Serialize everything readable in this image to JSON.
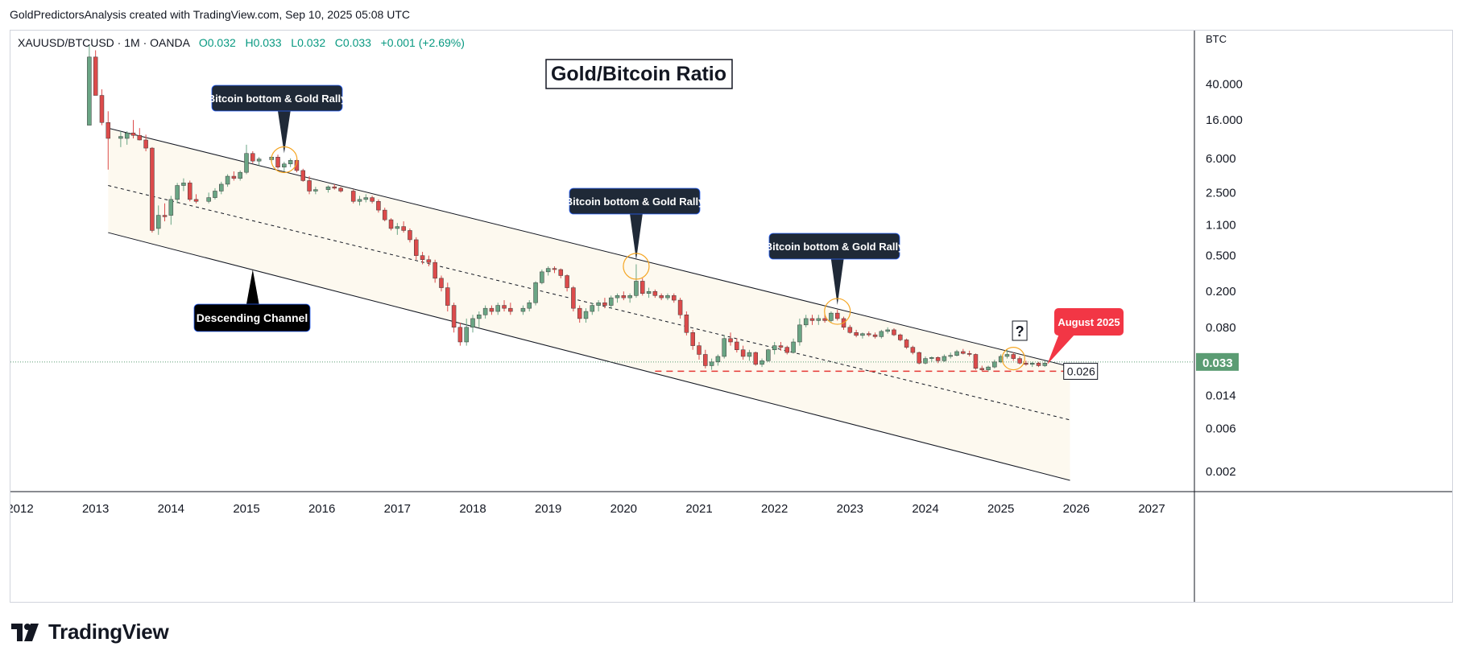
{
  "header": {
    "credit": "GoldPredictorsAnalysis created with TradingView.com, Sep 10, 2025 05:08 UTC"
  },
  "symbol_info": {
    "symbol": "XAUUSD/BTCUSD",
    "interval": "1M",
    "source": "OANDA",
    "open": "O0.032",
    "high": "H0.033",
    "low": "L0.032",
    "close": "C0.033",
    "change": "+0.001 (+2.69%)"
  },
  "footer": {
    "brand": "TradingView"
  },
  "colors": {
    "up": "#6aa584",
    "down": "#dc4b4b",
    "channel_fill": "#fdf9ef",
    "callout_bg": "#1f2937",
    "august_bg": "#f23645",
    "last_price_bg": "#5b9c73",
    "support_line": "#e53935",
    "circle": "#f5a623"
  },
  "chart_data": {
    "type": "candlestick",
    "title": "Gold/Bitcoin Ratio",
    "y_unit": "BTC",
    "y_scale": "log",
    "ylim": [
      0.0012,
      75
    ],
    "x_ticks": [
      "2012",
      "2013",
      "2014",
      "2015",
      "2016",
      "2017",
      "2018",
      "2019",
      "2020",
      "2021",
      "2022",
      "2023",
      "2024",
      "2025",
      "2026",
      "2027"
    ],
    "y_ticks": [
      "40.000",
      "16.000",
      "6.000",
      "2.500",
      "1.100",
      "0.500",
      "0.200",
      "0.080",
      "0.014",
      "0.006",
      "0.002"
    ],
    "last_price": "0.033",
    "support_level": "0.026",
    "channel": {
      "upper_start": [
        "2013-03",
        13.0
      ],
      "upper_end": [
        "2025-09",
        0.033
      ],
      "mid_start": [
        "2013-03",
        3.0
      ],
      "mid_end": [
        "2025-12",
        0.0075
      ],
      "lower_start": [
        "2013-03",
        0.9
      ],
      "lower_end": [
        "2025-12",
        0.0016
      ]
    },
    "candles_approx": [
      [
        "2012-12",
        14.0,
        110.0,
        14.0,
        80.0
      ],
      [
        "2013-01",
        80.0,
        95.0,
        30.0,
        30.0
      ],
      [
        "2013-02",
        30.0,
        35.0,
        14.0,
        15.0
      ],
      [
        "2013-03",
        15.0,
        20.0,
        4.5,
        10.0
      ],
      [
        "2013-05",
        10.0,
        12.0,
        8.0,
        10.5
      ],
      [
        "2013-06",
        10.0,
        12.0,
        8.5,
        11.5
      ],
      [
        "2013-07",
        11.5,
        16.0,
        10.0,
        10.8
      ],
      [
        "2013-08",
        10.8,
        13.0,
        9.5,
        9.6
      ],
      [
        "2013-09",
        9.6,
        11.0,
        7.2,
        7.8
      ],
      [
        "2013-10",
        7.8,
        8.0,
        0.9,
        0.95
      ],
      [
        "2013-11",
        1.0,
        1.8,
        0.85,
        1.4
      ],
      [
        "2013-12",
        1.4,
        1.9,
        1.2,
        1.35
      ],
      [
        "2014-01",
        1.4,
        2.3,
        1.1,
        2.1
      ],
      [
        "2014-02",
        2.1,
        3.2,
        1.9,
        3.0
      ],
      [
        "2014-03",
        3.0,
        3.6,
        2.6,
        3.2
      ],
      [
        "2014-04",
        3.2,
        3.4,
        2.0,
        2.1
      ],
      [
        "2014-05",
        2.1,
        2.4,
        1.9,
        2.0
      ],
      [
        "2014-07",
        2.0,
        2.5,
        1.9,
        2.2
      ],
      [
        "2014-08",
        2.2,
        2.8,
        2.1,
        2.6
      ],
      [
        "2014-09",
        2.6,
        3.3,
        2.4,
        3.1
      ],
      [
        "2014-10",
        3.1,
        4.0,
        2.9,
        3.8
      ],
      [
        "2014-11",
        3.8,
        4.3,
        3.4,
        3.6
      ],
      [
        "2014-12",
        3.6,
        4.4,
        3.4,
        4.2
      ],
      [
        "2015-01",
        4.2,
        8.5,
        4.0,
        6.8
      ],
      [
        "2015-02",
        6.8,
        7.2,
        5.3,
        5.6
      ],
      [
        "2015-03",
        5.6,
        6.2,
        5.0,
        5.9
      ],
      [
        "2015-05",
        5.8,
        6.4,
        5.5,
        6.2
      ],
      [
        "2015-06",
        6.2,
        6.6,
        4.6,
        4.8
      ],
      [
        "2015-07",
        4.8,
        5.5,
        4.3,
        5.2
      ],
      [
        "2015-08",
        5.2,
        6.0,
        4.8,
        5.7
      ],
      [
        "2015-09",
        5.7,
        5.9,
        4.2,
        4.4
      ],
      [
        "2015-10",
        4.4,
        4.6,
        3.3,
        3.4
      ],
      [
        "2015-11",
        3.4,
        3.8,
        2.4,
        2.6
      ],
      [
        "2015-12",
        2.6,
        2.9,
        2.4,
        2.7
      ],
      [
        "2016-02",
        2.7,
        3.0,
        2.5,
        2.9
      ],
      [
        "2016-03",
        2.9,
        3.1,
        2.7,
        2.8
      ],
      [
        "2016-04",
        2.8,
        2.9,
        2.5,
        2.6
      ],
      [
        "2016-06",
        2.6,
        2.7,
        1.9,
        2.0
      ],
      [
        "2016-07",
        2.0,
        2.3,
        1.8,
        2.1
      ],
      [
        "2016-08",
        2.1,
        2.4,
        1.95,
        2.2
      ],
      [
        "2016-09",
        2.2,
        2.3,
        1.9,
        2.0
      ],
      [
        "2016-10",
        2.0,
        2.1,
        1.5,
        1.6
      ],
      [
        "2016-11",
        1.6,
        1.7,
        1.2,
        1.25
      ],
      [
        "2016-12",
        1.25,
        1.3,
        0.95,
        1.0
      ],
      [
        "2017-01",
        1.0,
        1.15,
        0.85,
        1.05
      ],
      [
        "2017-02",
        1.05,
        1.2,
        0.9,
        0.95
      ],
      [
        "2017-03",
        0.95,
        1.0,
        0.7,
        0.75
      ],
      [
        "2017-04",
        0.75,
        0.8,
        0.45,
        0.5
      ],
      [
        "2017-05",
        0.5,
        0.55,
        0.4,
        0.45
      ],
      [
        "2017-06",
        0.45,
        0.5,
        0.38,
        0.42
      ],
      [
        "2017-07",
        0.42,
        0.45,
        0.25,
        0.28
      ],
      [
        "2017-08",
        0.28,
        0.3,
        0.2,
        0.22
      ],
      [
        "2017-09",
        0.22,
        0.25,
        0.12,
        0.14
      ],
      [
        "2017-10",
        0.14,
        0.15,
        0.07,
        0.08
      ],
      [
        "2017-11",
        0.08,
        0.09,
        0.05,
        0.055
      ],
      [
        "2017-12",
        0.055,
        0.1,
        0.05,
        0.08
      ],
      [
        "2018-01",
        0.08,
        0.11,
        0.07,
        0.1
      ],
      [
        "2018-02",
        0.1,
        0.12,
        0.08,
        0.11
      ],
      [
        "2018-03",
        0.11,
        0.14,
        0.1,
        0.13
      ],
      [
        "2018-04",
        0.13,
        0.14,
        0.11,
        0.12
      ],
      [
        "2018-05",
        0.12,
        0.15,
        0.11,
        0.14
      ],
      [
        "2018-06",
        0.14,
        0.16,
        0.12,
        0.13
      ],
      [
        "2018-07",
        0.13,
        0.15,
        0.11,
        0.12
      ],
      [
        "2018-09",
        0.12,
        0.14,
        0.11,
        0.13
      ],
      [
        "2018-10",
        0.13,
        0.16,
        0.12,
        0.15
      ],
      [
        "2018-11",
        0.15,
        0.26,
        0.14,
        0.25
      ],
      [
        "2018-12",
        0.25,
        0.35,
        0.24,
        0.33
      ],
      [
        "2019-01",
        0.33,
        0.38,
        0.3,
        0.36
      ],
      [
        "2019-02",
        0.36,
        0.38,
        0.32,
        0.35
      ],
      [
        "2019-03",
        0.35,
        0.36,
        0.28,
        0.3
      ],
      [
        "2019-04",
        0.3,
        0.31,
        0.2,
        0.22
      ],
      [
        "2019-05",
        0.22,
        0.23,
        0.12,
        0.13
      ],
      [
        "2019-06",
        0.13,
        0.14,
        0.09,
        0.1
      ],
      [
        "2019-07",
        0.1,
        0.13,
        0.09,
        0.12
      ],
      [
        "2019-08",
        0.12,
        0.15,
        0.11,
        0.14
      ],
      [
        "2019-09",
        0.14,
        0.16,
        0.12,
        0.15
      ],
      [
        "2019-10",
        0.15,
        0.17,
        0.13,
        0.14
      ],
      [
        "2019-11",
        0.14,
        0.18,
        0.13,
        0.17
      ],
      [
        "2019-12",
        0.17,
        0.19,
        0.15,
        0.18
      ],
      [
        "2020-01",
        0.18,
        0.2,
        0.16,
        0.17
      ],
      [
        "2020-02",
        0.17,
        0.19,
        0.15,
        0.18
      ],
      [
        "2020-03",
        0.18,
        0.4,
        0.17,
        0.26
      ],
      [
        "2020-04",
        0.26,
        0.28,
        0.18,
        0.19
      ],
      [
        "2020-05",
        0.19,
        0.22,
        0.17,
        0.2
      ],
      [
        "2020-06",
        0.2,
        0.21,
        0.17,
        0.18
      ],
      [
        "2020-07",
        0.18,
        0.19,
        0.16,
        0.17
      ],
      [
        "2020-08",
        0.17,
        0.19,
        0.16,
        0.18
      ],
      [
        "2020-09",
        0.18,
        0.19,
        0.15,
        0.16
      ],
      [
        "2020-10",
        0.16,
        0.17,
        0.1,
        0.11
      ],
      [
        "2020-11",
        0.11,
        0.12,
        0.065,
        0.07
      ],
      [
        "2020-12",
        0.07,
        0.075,
        0.045,
        0.05
      ],
      [
        "2021-01",
        0.05,
        0.055,
        0.035,
        0.04
      ],
      [
        "2021-02",
        0.04,
        0.045,
        0.028,
        0.03
      ],
      [
        "2021-03",
        0.03,
        0.036,
        0.027,
        0.033
      ],
      [
        "2021-04",
        0.033,
        0.04,
        0.03,
        0.038
      ],
      [
        "2021-05",
        0.038,
        0.065,
        0.036,
        0.06
      ],
      [
        "2021-06",
        0.06,
        0.07,
        0.05,
        0.055
      ],
      [
        "2021-07",
        0.055,
        0.06,
        0.042,
        0.045
      ],
      [
        "2021-08",
        0.045,
        0.05,
        0.035,
        0.038
      ],
      [
        "2021-09",
        0.038,
        0.045,
        0.034,
        0.042
      ],
      [
        "2021-10",
        0.042,
        0.043,
        0.03,
        0.031
      ],
      [
        "2021-11",
        0.031,
        0.036,
        0.029,
        0.034
      ],
      [
        "2021-12",
        0.034,
        0.046,
        0.033,
        0.045
      ],
      [
        "2022-01",
        0.045,
        0.055,
        0.04,
        0.05
      ],
      [
        "2022-02",
        0.05,
        0.055,
        0.044,
        0.048
      ],
      [
        "2022-03",
        0.048,
        0.05,
        0.04,
        0.042
      ],
      [
        "2022-04",
        0.042,
        0.06,
        0.041,
        0.055
      ],
      [
        "2022-05",
        0.055,
        0.1,
        0.05,
        0.085
      ],
      [
        "2022-06",
        0.085,
        0.11,
        0.08,
        0.1
      ],
      [
        "2022-07",
        0.1,
        0.11,
        0.085,
        0.095
      ],
      [
        "2022-08",
        0.095,
        0.11,
        0.085,
        0.1
      ],
      [
        "2022-09",
        0.1,
        0.11,
        0.09,
        0.095
      ],
      [
        "2022-10",
        0.095,
        0.12,
        0.09,
        0.115
      ],
      [
        "2022-11",
        0.115,
        0.125,
        0.095,
        0.1
      ],
      [
        "2022-12",
        0.1,
        0.105,
        0.075,
        0.08
      ],
      [
        "2023-01",
        0.08,
        0.085,
        0.068,
        0.07
      ],
      [
        "2023-02",
        0.07,
        0.075,
        0.062,
        0.065
      ],
      [
        "2023-03",
        0.065,
        0.07,
        0.06,
        0.068
      ],
      [
        "2023-04",
        0.068,
        0.072,
        0.063,
        0.066
      ],
      [
        "2023-05",
        0.066,
        0.07,
        0.06,
        0.063
      ],
      [
        "2023-06",
        0.063,
        0.075,
        0.06,
        0.072
      ],
      [
        "2023-07",
        0.072,
        0.08,
        0.068,
        0.075
      ],
      [
        "2023-08",
        0.075,
        0.078,
        0.064,
        0.066
      ],
      [
        "2023-09",
        0.066,
        0.068,
        0.056,
        0.058
      ],
      [
        "2023-10",
        0.058,
        0.06,
        0.046,
        0.048
      ],
      [
        "2023-11",
        0.048,
        0.05,
        0.04,
        0.042
      ],
      [
        "2023-12",
        0.042,
        0.043,
        0.031,
        0.032
      ],
      [
        "2024-01",
        0.032,
        0.038,
        0.031,
        0.036
      ],
      [
        "2024-02",
        0.036,
        0.038,
        0.033,
        0.037
      ],
      [
        "2024-03",
        0.037,
        0.038,
        0.032,
        0.034
      ],
      [
        "2024-04",
        0.034,
        0.04,
        0.033,
        0.038
      ],
      [
        "2024-05",
        0.038,
        0.042,
        0.036,
        0.039
      ],
      [
        "2024-06",
        0.039,
        0.045,
        0.038,
        0.043
      ],
      [
        "2024-07",
        0.043,
        0.046,
        0.04,
        0.041
      ],
      [
        "2024-08",
        0.041,
        0.044,
        0.038,
        0.04
      ],
      [
        "2024-09",
        0.04,
        0.041,
        0.027,
        0.028
      ],
      [
        "2024-10",
        0.028,
        0.03,
        0.026,
        0.027
      ],
      [
        "2024-11",
        0.027,
        0.03,
        0.026,
        0.029
      ],
      [
        "2024-12",
        0.029,
        0.035,
        0.028,
        0.033
      ],
      [
        "2025-01",
        0.033,
        0.04,
        0.032,
        0.038
      ],
      [
        "2025-02",
        0.038,
        0.045,
        0.036,
        0.04
      ],
      [
        "2025-03",
        0.04,
        0.042,
        0.034,
        0.036
      ],
      [
        "2025-04",
        0.036,
        0.038,
        0.031,
        0.032
      ],
      [
        "2025-05",
        0.032,
        0.034,
        0.03,
        0.031
      ],
      [
        "2025-06",
        0.031,
        0.033,
        0.029,
        0.032
      ],
      [
        "2025-07",
        0.032,
        0.033,
        0.029,
        0.03
      ],
      [
        "2025-08",
        0.03,
        0.034,
        0.029,
        0.032
      ]
    ],
    "annotations": [
      {
        "text": "Bitcoin bottom & Gold Rally",
        "at": [
          "2015-07",
          5.8
        ]
      },
      {
        "text": "Bitcoin bottom & Gold Rally",
        "at": [
          "2020-03",
          0.38
        ]
      },
      {
        "text": "Bitcoin bottom & Gold Rally",
        "at": [
          "2022-11",
          0.12
        ]
      },
      {
        "text": "Descending Channel",
        "at": [
          "2015-02",
          0.35
        ]
      },
      {
        "text": "August 2025",
        "at": [
          "2025-08",
          0.031
        ]
      },
      {
        "text": "?",
        "at": [
          "2025-04",
          0.036
        ]
      }
    ]
  }
}
